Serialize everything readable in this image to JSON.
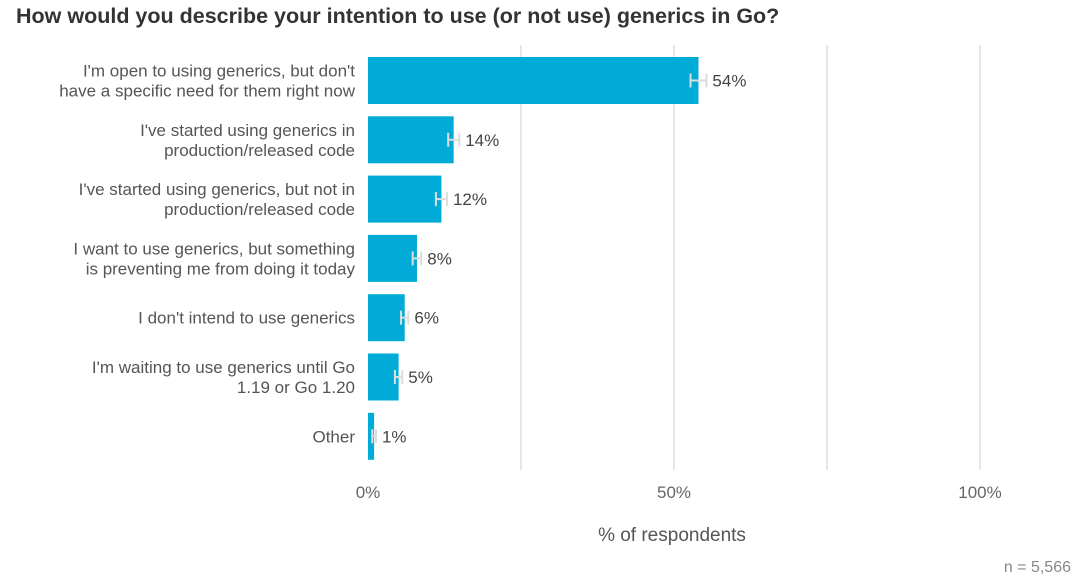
{
  "chart_data": {
    "type": "bar",
    "orientation": "horizontal",
    "title": "How would you describe your intention to use (or not use) generics in Go?",
    "categories": [
      [
        "I'm open to using generics, but don't",
        "have a specific need for them right now"
      ],
      [
        "I've started using generics in",
        "production/released code"
      ],
      [
        "I've started using generics, but not in",
        "production/released code"
      ],
      [
        "I want to use generics, but something",
        "is preventing me from doing it today"
      ],
      [
        "I don't intend to use generics"
      ],
      [
        "I'm waiting to use generics until Go",
        "1.19 or Go 1.20"
      ],
      [
        "Other"
      ]
    ],
    "values": [
      54,
      14,
      12,
      8,
      6,
      5,
      1
    ],
    "value_labels": [
      "54%",
      "14%",
      "12%",
      "8%",
      "6%",
      "5%",
      "1%"
    ],
    "error_margin": [
      1.3,
      0.9,
      0.9,
      0.7,
      0.6,
      0.6,
      0.3
    ],
    "xlim": [
      0,
      100
    ],
    "x_ticks": [
      0,
      50,
      100
    ],
    "x_tick_labels": [
      "0%",
      "50%",
      "100%"
    ],
    "gridlines_at": [
      0,
      25,
      50,
      75,
      100
    ],
    "xlabel": "% of respondents",
    "ylabel": "",
    "n_label": "n =  5,566",
    "bar_color": "#00acd7",
    "errorbar_color": "#dddddd",
    "grid_color": "#e6e6e6"
  }
}
